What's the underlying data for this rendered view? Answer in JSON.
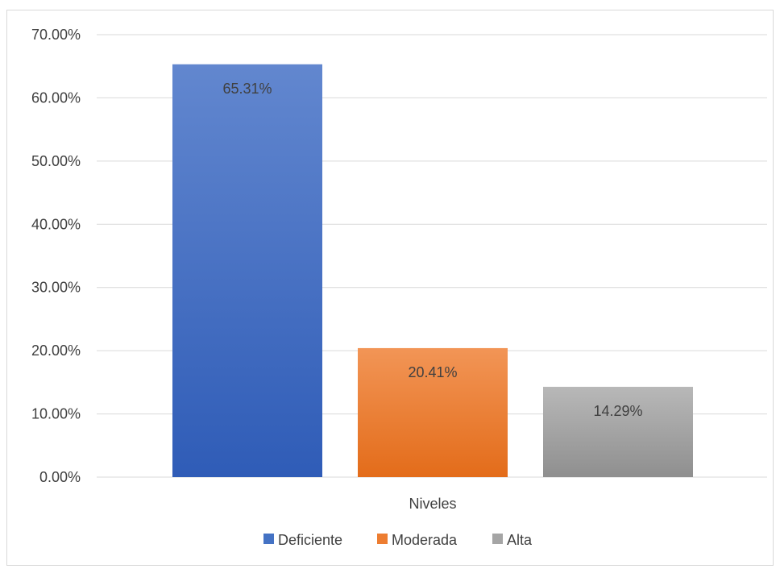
{
  "chart_data": {
    "type": "bar",
    "categories": [
      "Niveles"
    ],
    "series": [
      {
        "name": "Deficiente",
        "values": [
          65.31
        ],
        "label": "65.31%",
        "color": "#4472c4"
      },
      {
        "name": "Moderada",
        "values": [
          20.41
        ],
        "label": "20.41%",
        "color": "#ed7d31"
      },
      {
        "name": "Alta",
        "values": [
          14.29
        ],
        "label": "14.29%",
        "color": "#a5a5a5"
      }
    ],
    "yticks": [
      "0.00%",
      "10.00%",
      "20.00%",
      "30.00%",
      "40.00%",
      "50.00%",
      "60.00%",
      "70.00%"
    ],
    "ylim": [
      0,
      70
    ],
    "grid": true,
    "legend_position": "bottom",
    "xlabel": "",
    "ylabel": "",
    "title": ""
  }
}
